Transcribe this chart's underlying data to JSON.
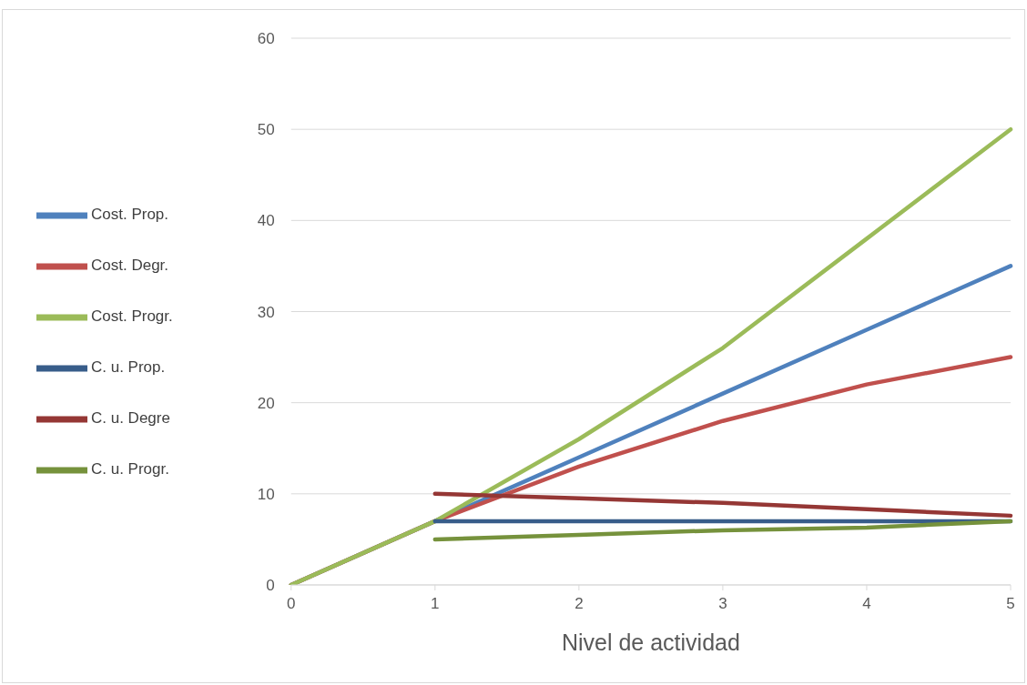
{
  "chart_data": {
    "type": "line",
    "xlabel": "Nivel de actividad",
    "categories": [
      "0",
      "1",
      "2",
      "3",
      "4",
      "5"
    ],
    "series": [
      {
        "name": "Cost. Prop.",
        "color": "#4f81bd",
        "values": [
          0,
          7,
          14,
          21,
          28,
          35
        ]
      },
      {
        "name": "Cost. Degr.",
        "color": "#c0504d",
        "values": [
          0,
          7,
          13,
          18,
          22,
          25
        ]
      },
      {
        "name": "Cost. Progr.",
        "color": "#9bbb59",
        "values": [
          0,
          7,
          16,
          26,
          38,
          50
        ]
      },
      {
        "name": "C. u. Prop.",
        "color": "#385d8a",
        "values": [
          null,
          7,
          7,
          7,
          7,
          7
        ]
      },
      {
        "name": "C. u. Degre",
        "color": "#953735",
        "values": [
          null,
          10,
          9.5,
          9,
          8.3,
          7.6
        ]
      },
      {
        "name": "C. u. Progr.",
        "color": "#76923c",
        "values": [
          null,
          5,
          5.5,
          6,
          6.3,
          7
        ]
      }
    ],
    "ylim": [
      0,
      60
    ],
    "yticks": [
      0,
      10,
      20,
      30,
      40,
      50,
      60
    ],
    "grid": "y",
    "legend": "left"
  }
}
